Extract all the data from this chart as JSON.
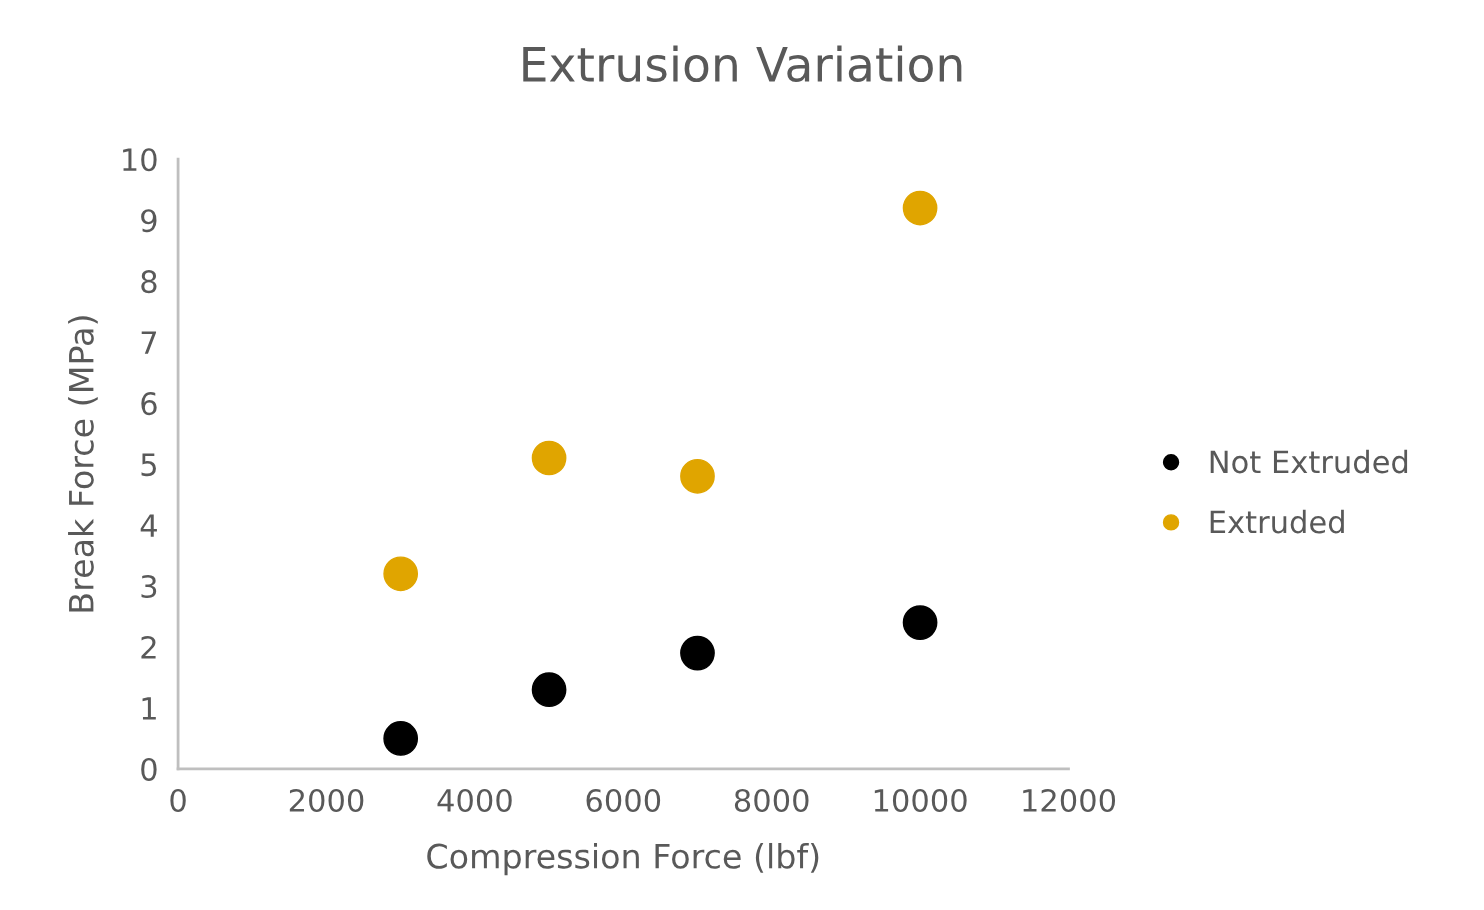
{
  "chart_data": {
    "type": "scatter",
    "title": "Extrusion Variation",
    "xlabel": "Compression Force (lbf)",
    "ylabel": "Break Force (MPa)",
    "x": [
      3000,
      5000,
      7000,
      10000
    ],
    "series": [
      {
        "name": "Not Extruded",
        "color": "#000000",
        "values": [
          0.5,
          1.3,
          1.9,
          2.4
        ]
      },
      {
        "name": "Extruded",
        "color": "#e0a500",
        "values": [
          3.2,
          5.1,
          4.8,
          9.2
        ]
      }
    ],
    "xlim": [
      0,
      12000
    ],
    "xticks": [
      0,
      2000,
      4000,
      6000,
      8000,
      10000,
      12000
    ],
    "ylim": [
      0,
      10
    ],
    "yticks": [
      0,
      1,
      2,
      3,
      4,
      5,
      6,
      7,
      8,
      9,
      10
    ],
    "grid": false,
    "legend": "right",
    "marker": "circle"
  }
}
